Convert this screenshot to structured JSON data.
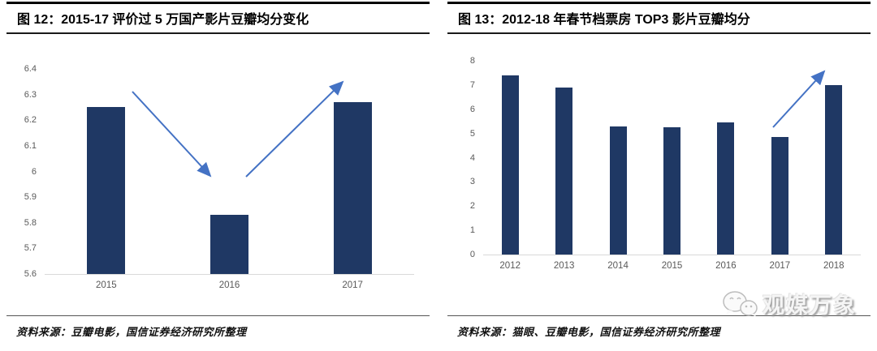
{
  "chart_data": [
    {
      "type": "bar",
      "title": "图 12：2015-17 评价过 5 万国产影片豆瓣均分变化",
      "categories": [
        "2015",
        "2016",
        "2017"
      ],
      "values": [
        6.25,
        5.83,
        6.27
      ],
      "ylim": [
        5.6,
        6.4
      ],
      "ytick_interval": 0.1,
      "yticks": [
        "5.6",
        "5.7",
        "5.8",
        "5.9",
        "6",
        "6.1",
        "6.2",
        "6.3",
        "6.4"
      ],
      "grid": false,
      "legend": "none",
      "bar_color": "#1f3864",
      "arrow_color": "#4472c4",
      "annotations": [
        {
          "name": "decline-trend-arrow",
          "direction": "down",
          "meaning": "drop from 2015 to 2016"
        },
        {
          "name": "rebound-trend-arrow",
          "direction": "up",
          "meaning": "rise from 2016 to 2017"
        }
      ],
      "source": "资料来源：豆瓣电影，国信证券经济研究所整理"
    },
    {
      "type": "bar",
      "title": "图 13：2012-18 年春节档票房 TOP3 影片豆瓣均分",
      "categories": [
        "2012",
        "2013",
        "2014",
        "2015",
        "2016",
        "2017",
        "2018"
      ],
      "values": [
        7.4,
        6.9,
        5.3,
        5.25,
        5.45,
        4.85,
        7.0
      ],
      "ylim": [
        0,
        8
      ],
      "ytick_interval": 1,
      "yticks": [
        "0",
        "1",
        "2",
        "3",
        "4",
        "5",
        "6",
        "7",
        "8"
      ],
      "grid": false,
      "legend": "none",
      "bar_color": "#1f3864",
      "arrow_color": "#4472c4",
      "annotations": [
        {
          "name": "surge-trend-arrow",
          "direction": "up",
          "meaning": "jump from 2017 to 2018"
        }
      ],
      "source": "资料来源：猫眼、豆瓣电影，国信证券经济研究所整理"
    }
  ],
  "ui_colors": {
    "bar": "#1f3864",
    "arrow": "#4472c4",
    "axis_line": "#d9d9d9",
    "tick_text": "#595959"
  },
  "watermark": {
    "text": "观媒万象",
    "color": "#f5f5f5"
  }
}
